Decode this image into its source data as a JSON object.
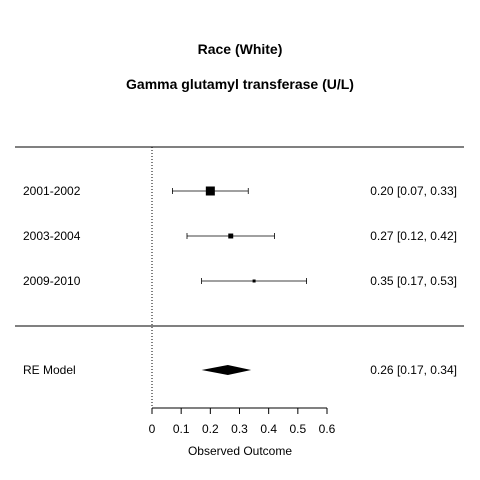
{
  "chart_data": {
    "type": "forest",
    "title": "Race (White)",
    "subtitle": "Gamma glutamyl transferase (U/L)",
    "xlabel": "Observed Outcome",
    "xlim": [
      0,
      0.6
    ],
    "x_ticks": [
      "0",
      "0.1",
      "0.2",
      "0.3",
      "0.4",
      "0.5",
      "0.6"
    ],
    "reference_line": 0,
    "studies": [
      {
        "label": "2001-2002",
        "estimate": 0.2,
        "ci_low": 0.07,
        "ci_high": 0.33,
        "text": "0.20 [0.07, 0.33]",
        "weight": 1.0
      },
      {
        "label": "2003-2004",
        "estimate": 0.27,
        "ci_low": 0.12,
        "ci_high": 0.42,
        "text": "0.27 [0.12, 0.42]",
        "weight": 0.55
      },
      {
        "label": "2009-2010",
        "estimate": 0.35,
        "ci_low": 0.17,
        "ci_high": 0.53,
        "text": "0.35 [0.17, 0.53]",
        "weight": 0.3
      }
    ],
    "summary": {
      "label": "RE Model",
      "estimate": 0.26,
      "ci_low": 0.17,
      "ci_high": 0.34,
      "text": "0.26 [0.17, 0.34]"
    }
  }
}
